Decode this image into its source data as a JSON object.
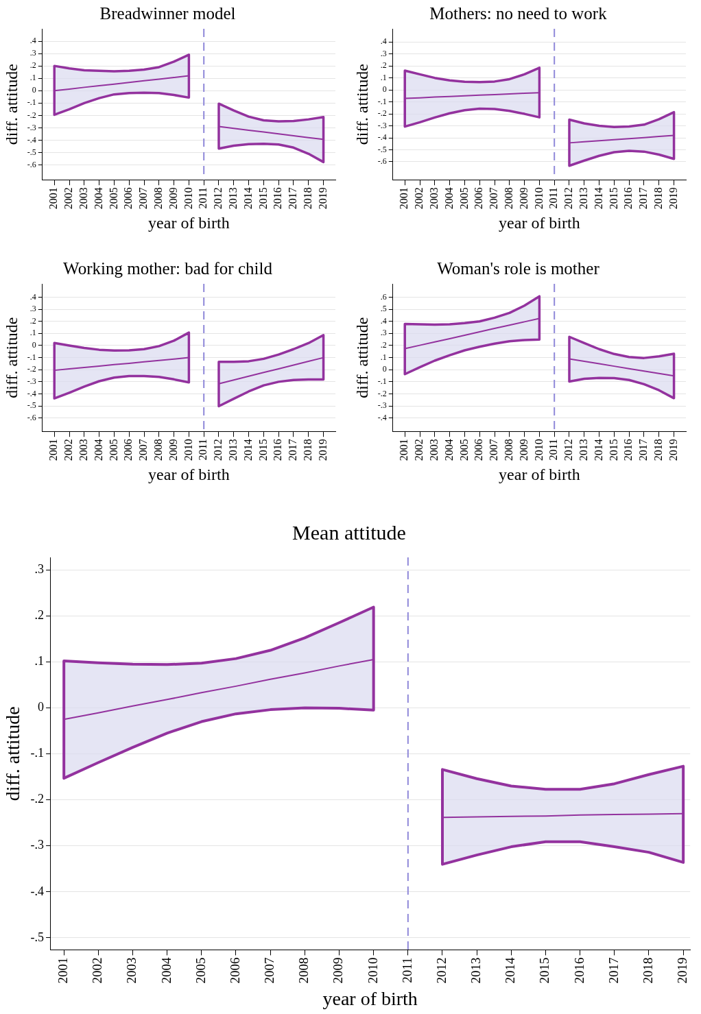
{
  "chart_data": [
    {
      "type": "line",
      "title": "Breadwinner model",
      "xlabel": "year of birth",
      "ylabel": "diff. attitude",
      "grid": "y",
      "legend": false,
      "marker": "none",
      "line_style": "solid",
      "xlim": [
        2000.2,
        2019.8
      ],
      "xticks": [
        2001,
        2002,
        2003,
        2004,
        2005,
        2006,
        2007,
        2008,
        2009,
        2010,
        2011,
        2012,
        2013,
        2014,
        2015,
        2016,
        2017,
        2018,
        2019
      ],
      "ylim": [
        -0.72,
        0.5
      ],
      "yticks": [
        {
          "value": -0.6,
          "label": "-.6"
        },
        {
          "value": -0.5,
          "label": "-.5"
        },
        {
          "value": -0.4,
          "label": "-.4"
        },
        {
          "value": -0.3,
          "label": "-.3"
        },
        {
          "value": -0.2,
          "label": "-.2"
        },
        {
          "value": -0.1,
          "label": "-.1"
        },
        {
          "value": 0,
          "label": "0"
        },
        {
          "value": 0.1,
          "label": ".1"
        },
        {
          "value": 0.2,
          "label": ".2"
        },
        {
          "value": 0.3,
          "label": ".3"
        },
        {
          "value": 0.4,
          "label": ".4"
        }
      ],
      "ref_lines": [
        {
          "axis": "x",
          "value": 2011,
          "color": "#8f88d9",
          "line_style": "dashed"
        }
      ],
      "series": [
        {
          "color": "#93329e",
          "x": [
            2001,
            2002,
            2003,
            2004,
            2005,
            2006,
            2007,
            2008,
            2009,
            2010
          ],
          "values": [
            0.0,
            0.013,
            0.027,
            0.04,
            0.053,
            0.067,
            0.08,
            0.093,
            0.107,
            0.12
          ],
          "lower": [
            -0.195,
            -0.15,
            -0.1,
            -0.06,
            -0.03,
            -0.02,
            -0.017,
            -0.02,
            -0.035,
            -0.056
          ],
          "upper": [
            0.2,
            0.18,
            0.165,
            0.16,
            0.157,
            0.16,
            0.17,
            0.19,
            0.235,
            0.29
          ]
        },
        {
          "color": "#93329e",
          "x": [
            2012,
            2013,
            2014,
            2015,
            2016,
            2017,
            2018,
            2019
          ],
          "values": [
            -0.29,
            -0.305,
            -0.32,
            -0.334,
            -0.349,
            -0.364,
            -0.379,
            -0.394
          ],
          "lower": [
            -0.468,
            -0.445,
            -0.432,
            -0.429,
            -0.435,
            -0.46,
            -0.51,
            -0.577
          ],
          "upper": [
            -0.105,
            -0.16,
            -0.21,
            -0.24,
            -0.248,
            -0.245,
            -0.232,
            -0.213
          ]
        }
      ]
    },
    {
      "type": "line",
      "title": "Mothers: no need to work",
      "xlabel": "year of birth",
      "ylabel": "diff. attitude",
      "grid": "y",
      "legend": false,
      "marker": "none",
      "line_style": "solid",
      "xlim": [
        2000.2,
        2019.8
      ],
      "xticks": [
        2001,
        2002,
        2003,
        2004,
        2005,
        2006,
        2007,
        2008,
        2009,
        2010,
        2011,
        2012,
        2013,
        2014,
        2015,
        2016,
        2017,
        2018,
        2019
      ],
      "ylim": [
        -0.75,
        0.51
      ],
      "yticks": [
        {
          "value": -0.6,
          "label": "-.6"
        },
        {
          "value": -0.5,
          "label": "-.5"
        },
        {
          "value": -0.4,
          "label": "-.4"
        },
        {
          "value": -0.3,
          "label": "-.3"
        },
        {
          "value": -0.2,
          "label": "-.2"
        },
        {
          "value": -0.1,
          "label": "-.1"
        },
        {
          "value": 0,
          "label": "0"
        },
        {
          "value": 0.1,
          "label": ".1"
        },
        {
          "value": 0.2,
          "label": ".2"
        },
        {
          "value": 0.3,
          "label": ".3"
        },
        {
          "value": 0.4,
          "label": ".4"
        }
      ],
      "ref_lines": [
        {
          "axis": "x",
          "value": 2011,
          "color": "#8f88d9",
          "line_style": "dashed"
        }
      ],
      "series": [
        {
          "color": "#93329e",
          "x": [
            2001,
            2002,
            2003,
            2004,
            2005,
            2006,
            2007,
            2008,
            2009,
            2010
          ],
          "values": [
            -0.071,
            -0.066,
            -0.06,
            -0.055,
            -0.05,
            -0.044,
            -0.039,
            -0.034,
            -0.028,
            -0.023
          ],
          "lower": [
            -0.306,
            -0.27,
            -0.23,
            -0.195,
            -0.17,
            -0.157,
            -0.16,
            -0.175,
            -0.2,
            -0.229
          ],
          "upper": [
            0.161,
            0.13,
            0.1,
            0.08,
            0.068,
            0.065,
            0.07,
            0.09,
            0.13,
            0.185
          ]
        },
        {
          "color": "#93329e",
          "x": [
            2012,
            2013,
            2014,
            2015,
            2016,
            2017,
            2018,
            2019
          ],
          "values": [
            -0.442,
            -0.433,
            -0.424,
            -0.415,
            -0.407,
            -0.398,
            -0.389,
            -0.38
          ],
          "lower": [
            -0.633,
            -0.59,
            -0.55,
            -0.52,
            -0.509,
            -0.515,
            -0.54,
            -0.576
          ],
          "upper": [
            -0.248,
            -0.28,
            -0.3,
            -0.31,
            -0.305,
            -0.29,
            -0.245,
            -0.186
          ]
        }
      ]
    },
    {
      "type": "line",
      "title": "Working mother: bad for child",
      "xlabel": "year of birth",
      "ylabel": "diff. attitude",
      "grid": "y",
      "legend": false,
      "marker": "none",
      "line_style": "solid",
      "xlim": [
        2000.2,
        2019.8
      ],
      "xticks": [
        2001,
        2002,
        2003,
        2004,
        2005,
        2006,
        2007,
        2008,
        2009,
        2010,
        2011,
        2012,
        2013,
        2014,
        2015,
        2016,
        2017,
        2018,
        2019
      ],
      "ylim": [
        -0.71,
        0.51
      ],
      "yticks": [
        {
          "value": -0.6,
          "label": "-.6"
        },
        {
          "value": -0.5,
          "label": "-.5"
        },
        {
          "value": -0.4,
          "label": "-.4"
        },
        {
          "value": -0.3,
          "label": "-.3"
        },
        {
          "value": -0.2,
          "label": "-.2"
        },
        {
          "value": -0.1,
          "label": "-.1"
        },
        {
          "value": 0,
          "label": "0"
        },
        {
          "value": 0.1,
          "label": ".1"
        },
        {
          "value": 0.2,
          "label": ".2"
        },
        {
          "value": 0.3,
          "label": ".3"
        },
        {
          "value": 0.4,
          "label": ".4"
        }
      ],
      "ref_lines": [
        {
          "axis": "x",
          "value": 2011,
          "color": "#8f88d9",
          "line_style": "dashed"
        }
      ],
      "series": [
        {
          "color": "#93329e",
          "x": [
            2001,
            2002,
            2003,
            2004,
            2005,
            2006,
            2007,
            2008,
            2009,
            2010
          ],
          "values": [
            -0.205,
            -0.193,
            -0.182,
            -0.17,
            -0.158,
            -0.147,
            -0.135,
            -0.123,
            -0.112,
            -0.1
          ],
          "lower": [
            -0.437,
            -0.39,
            -0.34,
            -0.295,
            -0.265,
            -0.252,
            -0.252,
            -0.26,
            -0.28,
            -0.305
          ],
          "upper": [
            0.021,
            0.0,
            -0.02,
            -0.035,
            -0.042,
            -0.04,
            -0.03,
            -0.005,
            0.04,
            0.107
          ]
        },
        {
          "color": "#93329e",
          "x": [
            2012,
            2013,
            2014,
            2015,
            2016,
            2017,
            2018,
            2019
          ],
          "values": [
            -0.316,
            -0.285,
            -0.254,
            -0.223,
            -0.193,
            -0.162,
            -0.131,
            -0.1
          ],
          "lower": [
            -0.502,
            -0.44,
            -0.38,
            -0.33,
            -0.3,
            -0.285,
            -0.281,
            -0.281
          ],
          "upper": [
            -0.135,
            -0.135,
            -0.13,
            -0.11,
            -0.075,
            -0.03,
            0.02,
            0.086
          ]
        }
      ]
    },
    {
      "type": "line",
      "title": "Woman's role is mother",
      "xlabel": "year of birth",
      "ylabel": "diff. attitude",
      "grid": "y",
      "legend": false,
      "marker": "none",
      "line_style": "solid",
      "xlim": [
        2000.2,
        2019.8
      ],
      "xticks": [
        2001,
        2002,
        2003,
        2004,
        2005,
        2006,
        2007,
        2008,
        2009,
        2010,
        2011,
        2012,
        2013,
        2014,
        2015,
        2016,
        2017,
        2018,
        2019
      ],
      "ylim": [
        -0.51,
        0.71
      ],
      "yticks": [
        {
          "value": -0.4,
          "label": "-.4"
        },
        {
          "value": -0.3,
          "label": "-.3"
        },
        {
          "value": -0.2,
          "label": "-.2"
        },
        {
          "value": -0.1,
          "label": "-.1"
        },
        {
          "value": 0,
          "label": "0"
        },
        {
          "value": 0.1,
          "label": ".1"
        },
        {
          "value": 0.2,
          "label": ".2"
        },
        {
          "value": 0.3,
          "label": ".3"
        },
        {
          "value": 0.4,
          "label": ".4"
        },
        {
          "value": 0.5,
          "label": ".5"
        },
        {
          "value": 0.6,
          "label": ".6"
        }
      ],
      "ref_lines": [
        {
          "axis": "x",
          "value": 2011,
          "color": "#8f88d9",
          "line_style": "dashed"
        }
      ],
      "series": [
        {
          "color": "#93329e",
          "x": [
            2001,
            2002,
            2003,
            2004,
            2005,
            2006,
            2007,
            2008,
            2009,
            2010
          ],
          "values": [
            0.174,
            0.202,
            0.23,
            0.257,
            0.285,
            0.313,
            0.341,
            0.368,
            0.396,
            0.424
          ],
          "lower": [
            -0.037,
            0.02,
            0.075,
            0.12,
            0.16,
            0.19,
            0.215,
            0.235,
            0.245,
            0.249
          ],
          "upper": [
            0.378,
            0.375,
            0.373,
            0.375,
            0.385,
            0.4,
            0.43,
            0.47,
            0.53,
            0.607
          ]
        },
        {
          "color": "#93329e",
          "x": [
            2012,
            2013,
            2014,
            2015,
            2016,
            2017,
            2018,
            2019
          ],
          "values": [
            0.089,
            0.069,
            0.049,
            0.029,
            0.009,
            -0.011,
            -0.031,
            -0.051
          ],
          "lower": [
            -0.098,
            -0.075,
            -0.068,
            -0.07,
            -0.085,
            -0.12,
            -0.17,
            -0.236
          ],
          "upper": [
            0.272,
            0.22,
            0.17,
            0.13,
            0.105,
            0.097,
            0.11,
            0.132
          ]
        }
      ]
    },
    {
      "type": "line",
      "title": "Mean attitude",
      "xlabel": "year of birth",
      "ylabel": "diff. attitude",
      "grid": "y",
      "legend": false,
      "marker": "none",
      "line_style": "solid",
      "xlim": [
        2000.6,
        2019.2
      ],
      "xticks": [
        2001,
        2002,
        2003,
        2004,
        2005,
        2006,
        2007,
        2008,
        2009,
        2010,
        2011,
        2012,
        2013,
        2014,
        2015,
        2016,
        2017,
        2018,
        2019
      ],
      "ylim": [
        -0.526,
        0.327
      ],
      "yticks": [
        {
          "value": -0.5,
          "label": "-.5"
        },
        {
          "value": -0.4,
          "label": "-.4"
        },
        {
          "value": -0.3,
          "label": "-.3"
        },
        {
          "value": -0.2,
          "label": "-.2"
        },
        {
          "value": -0.1,
          "label": "-.1"
        },
        {
          "value": 0,
          "label": "0"
        },
        {
          "value": 0.1,
          "label": ".1"
        },
        {
          "value": 0.2,
          "label": ".2"
        },
        {
          "value": 0.3,
          "label": ".3"
        }
      ],
      "ref_lines": [
        {
          "axis": "x",
          "value": 2011,
          "color": "#8f88d9",
          "line_style": "dashed"
        }
      ],
      "series": [
        {
          "color": "#93329e",
          "x": [
            2001,
            2002,
            2003,
            2004,
            2005,
            2006,
            2007,
            2008,
            2009,
            2010
          ],
          "values": [
            -0.025,
            -0.011,
            0.004,
            0.018,
            0.033,
            0.047,
            0.062,
            0.076,
            0.091,
            0.105
          ],
          "lower": [
            -0.153,
            -0.119,
            -0.086,
            -0.055,
            -0.03,
            -0.013,
            -0.004,
            0.0,
            -0.001,
            -0.005
          ],
          "upper": [
            0.102,
            0.098,
            0.095,
            0.094,
            0.097,
            0.107,
            0.125,
            0.152,
            0.185,
            0.219
          ]
        },
        {
          "color": "#93329e",
          "x": [
            2012,
            2013,
            2014,
            2015,
            2016,
            2017,
            2018,
            2019
          ],
          "values": [
            -0.238,
            -0.237,
            -0.236,
            -0.235,
            -0.233,
            -0.232,
            -0.231,
            -0.23
          ],
          "lower": [
            -0.34,
            -0.32,
            -0.302,
            -0.291,
            -0.291,
            -0.302,
            -0.314,
            -0.336
          ],
          "upper": [
            -0.134,
            -0.154,
            -0.17,
            -0.177,
            -0.177,
            -0.165,
            -0.145,
            -0.127
          ]
        }
      ]
    }
  ]
}
